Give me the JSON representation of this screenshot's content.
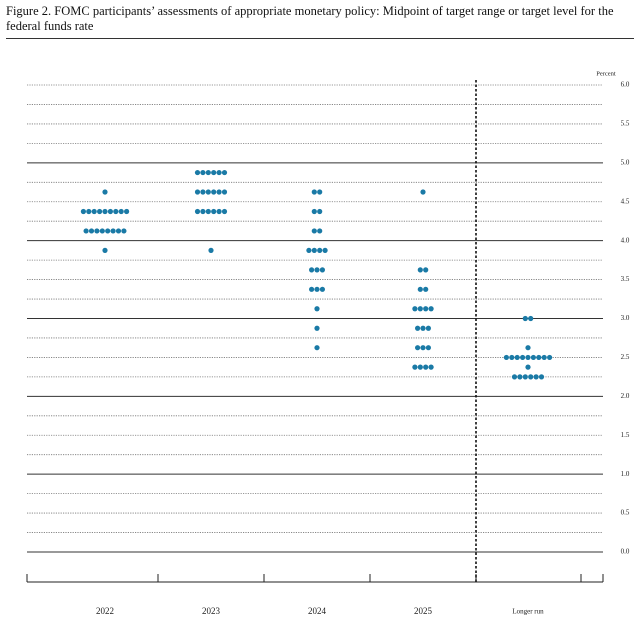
{
  "chart_data": {
    "type": "dot",
    "title": "Figure 2.  FOMC participants’ assessments of appropriate monetary policy: Midpoint of target range or target level for the federal funds rate",
    "y_label": "Percent",
    "color": "#1a7aa6",
    "ylim": [
      0,
      6
    ],
    "yticks": [
      {
        "value": 0,
        "label": "0.0"
      },
      {
        "value": 0.5,
        "label": "0.5"
      },
      {
        "value": 1,
        "label": "1.0"
      },
      {
        "value": 1.5,
        "label": "1.5"
      },
      {
        "value": 2,
        "label": "2.0"
      },
      {
        "value": 2.5,
        "label": "2.5"
      },
      {
        "value": 3,
        "label": "3.0"
      },
      {
        "value": 3.5,
        "label": "3.5"
      },
      {
        "value": 4,
        "label": "4.0"
      },
      {
        "value": 4.5,
        "label": "4.5"
      },
      {
        "value": 5,
        "label": "5.0"
      },
      {
        "value": 5.5,
        "label": "5.5"
      },
      {
        "value": 6,
        "label": "6.0"
      }
    ],
    "columns": [
      {
        "label": "2022",
        "rates": [
          4.625,
          4.375,
          4.125,
          3.875
        ],
        "counts": [
          1,
          9,
          8,
          1
        ]
      },
      {
        "label": "2023",
        "rates": [
          4.875,
          4.625,
          4.375,
          3.875
        ],
        "counts": [
          6,
          6,
          6,
          1
        ]
      },
      {
        "label": "2024",
        "rates": [
          4.625,
          4.375,
          4.125,
          3.875,
          3.625,
          3.375,
          3.125,
          2.875,
          2.625
        ],
        "counts": [
          2,
          2,
          2,
          4,
          3,
          3,
          1,
          1,
          1
        ]
      },
      {
        "label": "2025",
        "rates": [
          4.625,
          3.625,
          3.375,
          3.125,
          2.875,
          2.625,
          2.375
        ],
        "counts": [
          1,
          2,
          2,
          4,
          3,
          3,
          4
        ]
      },
      {
        "label": "Longer run",
        "rates": [
          3,
          2.625,
          2.5,
          2.375,
          2.25
        ],
        "counts": [
          2,
          1,
          9,
          1,
          6
        ]
      }
    ]
  }
}
